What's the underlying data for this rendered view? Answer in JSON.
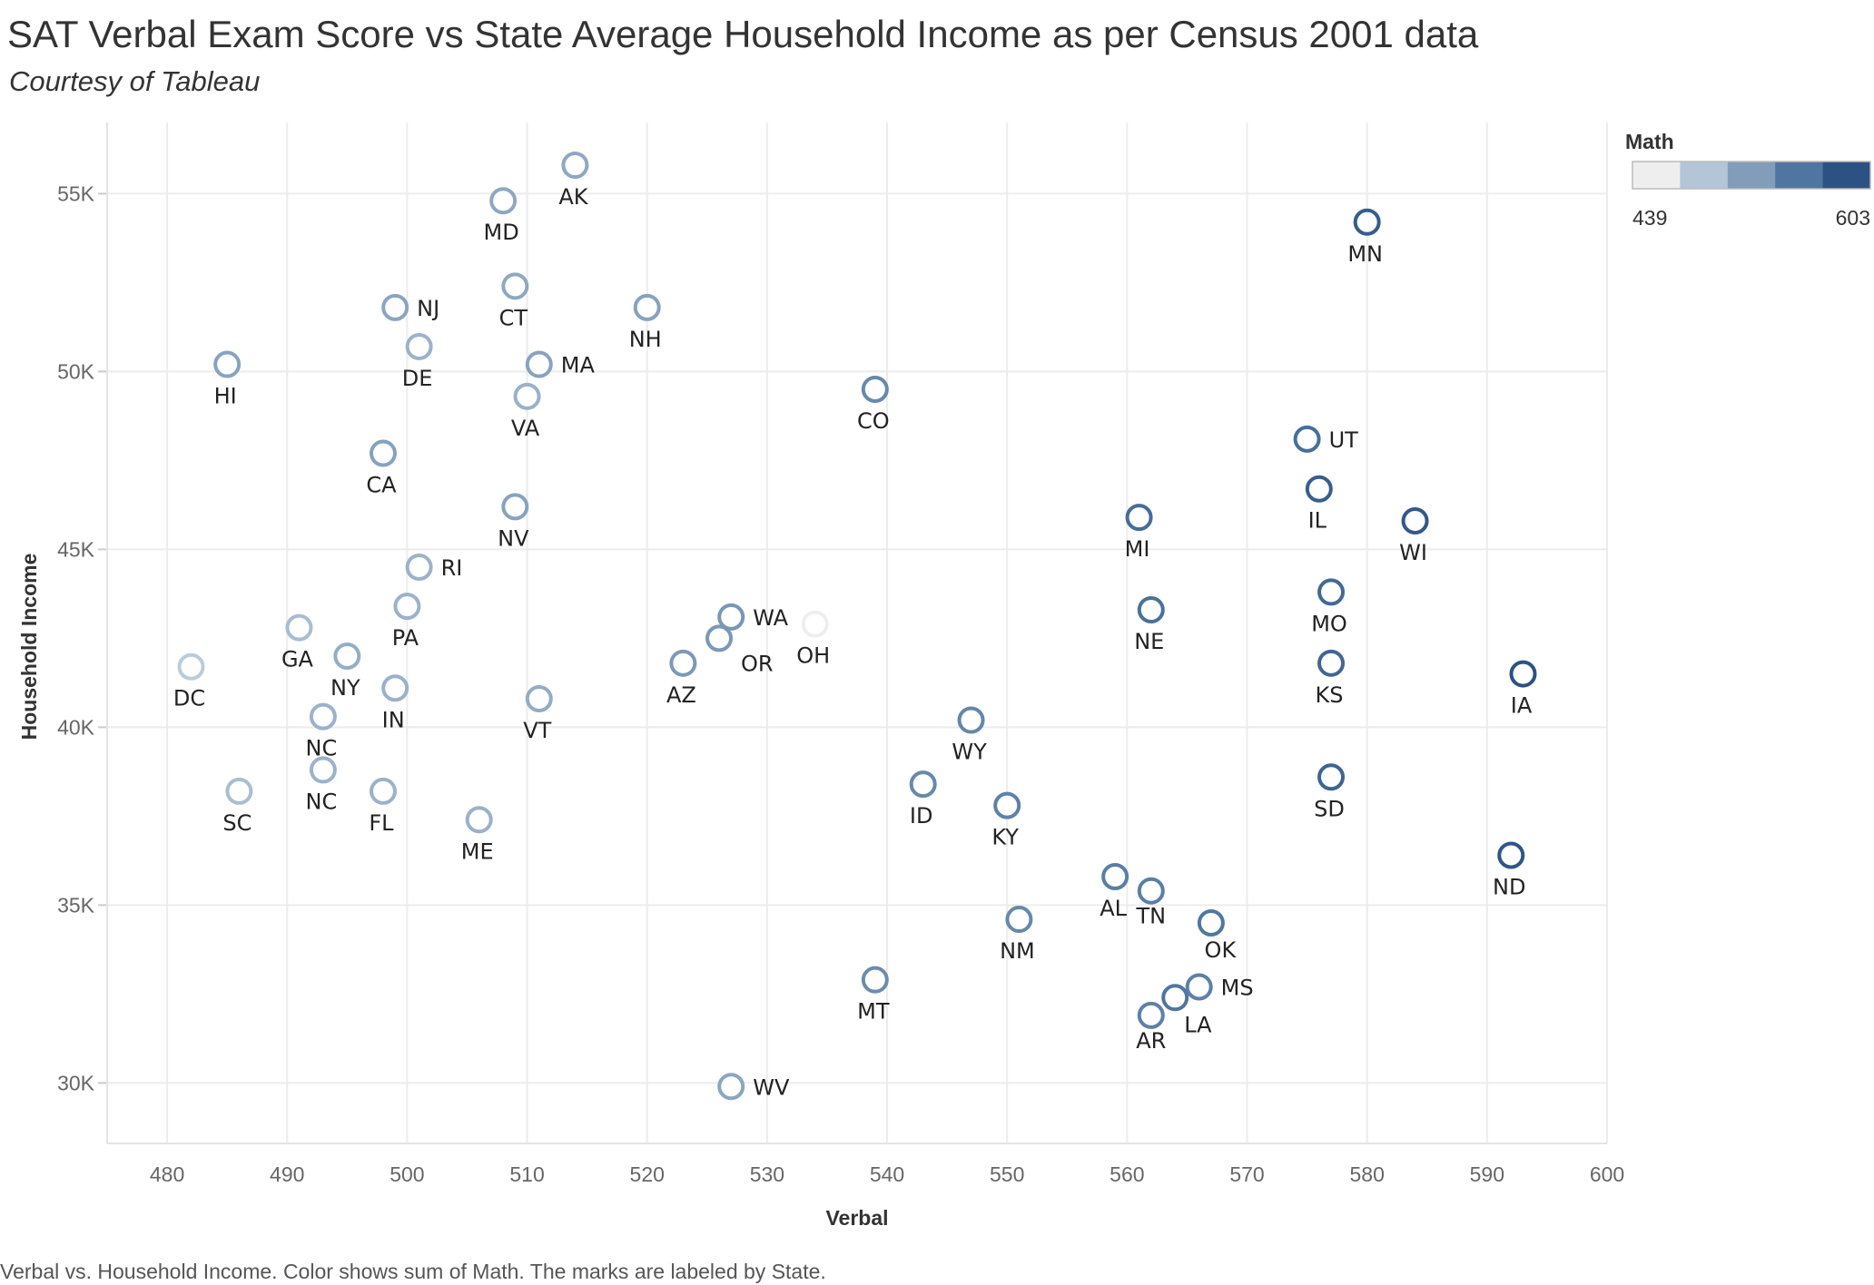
{
  "header": {
    "title": "SAT Verbal Exam Score vs State Average Household Income as per Census 2001 data",
    "subtitle": "Courtesy of Tableau"
  },
  "caption": "Verbal vs. Household Income.  Color shows sum of Math.  The marks are labeled by State.",
  "chart_data": {
    "type": "scatter",
    "xlabel": "Verbal",
    "ylabel": "Household Income",
    "xlim": [
      475,
      600
    ],
    "ylim": [
      28300,
      57000
    ],
    "x_ticks": [
      480,
      490,
      500,
      510,
      520,
      530,
      540,
      550,
      560,
      570,
      580,
      590,
      600
    ],
    "y_ticks": [
      {
        "value": 30000,
        "label": "30K"
      },
      {
        "value": 35000,
        "label": "35K"
      },
      {
        "value": 40000,
        "label": "40K"
      },
      {
        "value": 45000,
        "label": "45K"
      },
      {
        "value": 50000,
        "label": "50K"
      },
      {
        "value": 55000,
        "label": "55K"
      }
    ],
    "grid": true,
    "color_legend": {
      "title": "Math",
      "min_label": "439",
      "max_label": "603",
      "steps": [
        "#eeeeee",
        "#b4c5d8",
        "#819db9",
        "#4f76a0",
        "#2c5283"
      ],
      "position": "top-right"
    },
    "points": [
      {
        "state": "AK",
        "verbal": 514,
        "income": 55800,
        "math": 510
      },
      {
        "state": "MD",
        "verbal": 508,
        "income": 54800,
        "math": 510
      },
      {
        "state": "MN",
        "verbal": 580,
        "income": 54200,
        "math": 591
      },
      {
        "state": "CT",
        "verbal": 509,
        "income": 52400,
        "math": 510
      },
      {
        "state": "NJ",
        "verbal": 499,
        "income": 51800,
        "math": 513
      },
      {
        "state": "NH",
        "verbal": 520,
        "income": 51800,
        "math": 516
      },
      {
        "state": "DE",
        "verbal": 501,
        "income": 50700,
        "math": 499
      },
      {
        "state": "HI",
        "verbal": 485,
        "income": 50200,
        "math": 515
      },
      {
        "state": "MA",
        "verbal": 511,
        "income": 50200,
        "math": 515
      },
      {
        "state": "CO",
        "verbal": 539,
        "income": 49500,
        "math": 542
      },
      {
        "state": "VA",
        "verbal": 510,
        "income": 49300,
        "math": 501
      },
      {
        "state": "UT",
        "verbal": 575,
        "income": 48100,
        "math": 570
      },
      {
        "state": "CA",
        "verbal": 498,
        "income": 47700,
        "math": 517
      },
      {
        "state": "IL",
        "verbal": 576,
        "income": 46700,
        "math": 589
      },
      {
        "state": "NV",
        "verbal": 509,
        "income": 46200,
        "math": 515
      },
      {
        "state": "MI",
        "verbal": 561,
        "income": 45900,
        "math": 572
      },
      {
        "state": "WI",
        "verbal": 584,
        "income": 45800,
        "math": 596
      },
      {
        "state": "RI",
        "verbal": 501,
        "income": 44500,
        "math": 499
      },
      {
        "state": "MO",
        "verbal": 577,
        "income": 43800,
        "math": 577
      },
      {
        "state": "PA",
        "verbal": 500,
        "income": 43400,
        "math": 499
      },
      {
        "state": "NE",
        "verbal": 562,
        "income": 43300,
        "math": 568
      },
      {
        "state": "WA",
        "verbal": 527,
        "income": 43100,
        "math": 527
      },
      {
        "state": "OH",
        "verbal": 534,
        "income": 42900,
        "math": 439
      },
      {
        "state": "GA",
        "verbal": 491,
        "income": 42800,
        "math": 489
      },
      {
        "state": "OR",
        "verbal": 526,
        "income": 42500,
        "math": 526
      },
      {
        "state": "NY",
        "verbal": 495,
        "income": 42000,
        "math": 505
      },
      {
        "state": "AZ",
        "verbal": 523,
        "income": 41800,
        "math": 525
      },
      {
        "state": "KS",
        "verbal": 577,
        "income": 41800,
        "math": 580
      },
      {
        "state": "DC",
        "verbal": 482,
        "income": 41700,
        "math": 474
      },
      {
        "state": "IA",
        "verbal": 593,
        "income": 41500,
        "math": 603
      },
      {
        "state": "IN",
        "verbal": 499,
        "income": 41100,
        "math": 501
      },
      {
        "state": "VT",
        "verbal": 511,
        "income": 40800,
        "math": 506
      },
      {
        "state": "NC",
        "verbal": 493,
        "income": 40300,
        "math": 499
      },
      {
        "state": "WY",
        "verbal": 547,
        "income": 40200,
        "math": 545
      },
      {
        "state": "NC",
        "verbal": 493,
        "income": 38800,
        "math": 499
      },
      {
        "state": "SD",
        "verbal": 577,
        "income": 38600,
        "math": 582
      },
      {
        "state": "ID",
        "verbal": 543,
        "income": 38400,
        "math": 542
      },
      {
        "state": "SC",
        "verbal": 486,
        "income": 38200,
        "math": 488
      },
      {
        "state": "FL",
        "verbal": 498,
        "income": 38200,
        "math": 499
      },
      {
        "state": "KY",
        "verbal": 550,
        "income": 37800,
        "math": 550
      },
      {
        "state": "ME",
        "verbal": 506,
        "income": 37400,
        "math": 500
      },
      {
        "state": "ND",
        "verbal": 592,
        "income": 36400,
        "math": 599
      },
      {
        "state": "AL",
        "verbal": 559,
        "income": 35800,
        "math": 554
      },
      {
        "state": "TN",
        "verbal": 562,
        "income": 35400,
        "math": 553
      },
      {
        "state": "NM",
        "verbal": 551,
        "income": 34600,
        "math": 542
      },
      {
        "state": "OK",
        "verbal": 567,
        "income": 34500,
        "math": 561
      },
      {
        "state": "MT",
        "verbal": 539,
        "income": 32900,
        "math": 539
      },
      {
        "state": "MS",
        "verbal": 566,
        "income": 32700,
        "math": 551
      },
      {
        "state": "LA",
        "verbal": 564,
        "income": 32400,
        "math": 562
      },
      {
        "state": "AR",
        "verbal": 562,
        "income": 31900,
        "math": 550
      },
      {
        "state": "WV",
        "verbal": 527,
        "income": 29900,
        "math": 512
      }
    ]
  }
}
